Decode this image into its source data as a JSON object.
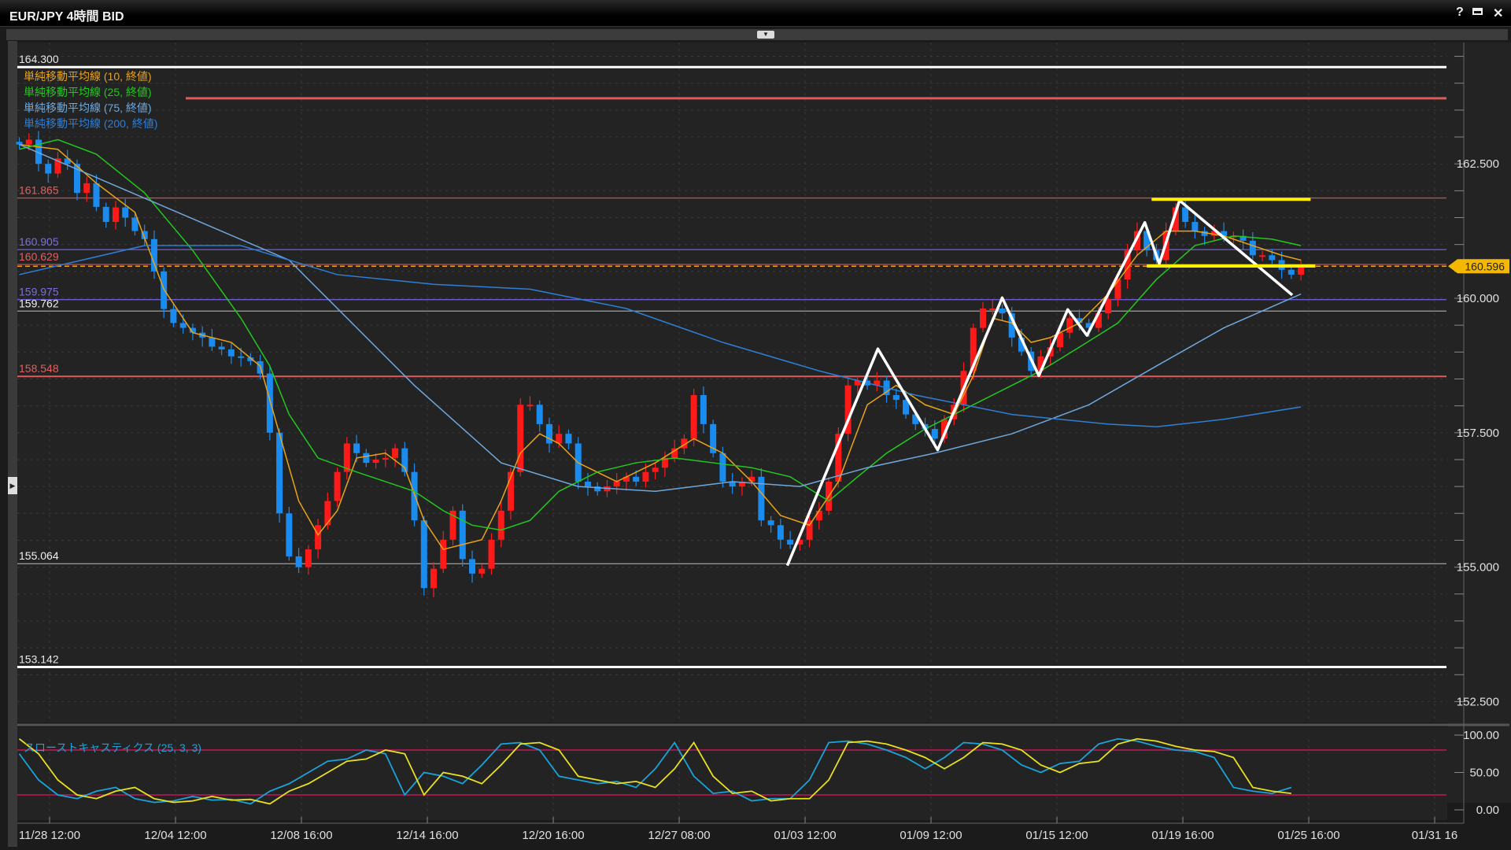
{
  "window": {
    "title": "EUR/JPY 4時間 BID",
    "icons": [
      "help-icon",
      "maximize-icon",
      "close-icon"
    ],
    "help_glyph": "?",
    "close_glyph": "✕"
  },
  "legend": [
    {
      "label": "単純移動平均線 (10, 終値)",
      "color": "#e8a317"
    },
    {
      "label": "単純移動平均線 (25, 終値)",
      "color": "#22c81e"
    },
    {
      "label": "単純移動平均線 (75, 終値)",
      "color": "#6fa8dc"
    },
    {
      "label": "単純移動平均線 (200, 終値)",
      "color": "#2e7fd6"
    }
  ],
  "stochastic": {
    "label": "スローストキャスティクス (25, 3, 3)",
    "axis": [
      "100.00",
      "50.00",
      "0.00"
    ],
    "bands": [
      80,
      20
    ]
  },
  "chart_data": {
    "type": "candlestick",
    "symbol": "EUR/JPY",
    "timeframe": "4時間",
    "colors": {
      "up": "#ff1a1a",
      "down": "#1a8cf0",
      "background": "#232323"
    },
    "ylim": [
      152.2,
      164.6
    ],
    "y_ticks": [
      "162.500",
      "160.000",
      "157.500",
      "155.000",
      "152.500"
    ],
    "y_tick_values": [
      162.5,
      160.0,
      157.5,
      155.0,
      152.5
    ],
    "x_labels": [
      "11/28 12:00",
      "12/04 12:00",
      "12/08 16:00",
      "12/14 16:00",
      "12/20 16:00",
      "12/27 08:00",
      "01/03 12:00",
      "01/09 12:00",
      "01/15 12:00",
      "01/19 16:00",
      "01/25 16:00",
      "01/31 16"
    ],
    "current_price": {
      "label": "160.596",
      "value": 160.596,
      "color": "#f5b800"
    },
    "close": [
      162.86,
      162.95,
      162.5,
      162.32,
      162.6,
      162.5,
      161.96,
      162.14,
      161.7,
      161.42,
      161.69,
      161.5,
      161.25,
      161.1,
      160.5,
      159.8,
      159.54,
      159.45,
      159.36,
      159.27,
      159.1,
      159.05,
      158.92,
      158.9,
      158.83,
      158.6,
      157.5,
      156.0,
      155.2,
      155.0,
      155.33,
      155.78,
      156.23,
      156.77,
      157.3,
      157.12,
      156.94,
      157.0,
      157.03,
      157.21,
      156.77,
      155.87,
      154.61,
      154.97,
      155.51,
      156.05,
      155.15,
      154.88,
      154.97,
      155.51,
      156.05,
      156.77,
      158.02,
      158.02,
      157.66,
      157.3,
      157.48,
      157.3,
      156.59,
      156.5,
      156.41,
      156.5,
      156.59,
      156.68,
      156.59,
      156.77,
      156.85,
      157.03,
      157.21,
      157.39,
      158.2,
      157.66,
      157.12,
      156.59,
      156.5,
      156.59,
      156.68,
      155.87,
      155.78,
      155.51,
      155.42,
      155.51,
      155.87,
      156.05,
      156.59,
      157.48,
      158.38,
      158.47,
      158.38,
      158.47,
      158.2,
      158.11,
      157.84,
      157.66,
      157.57,
      157.39,
      157.75,
      158.02,
      158.65,
      159.45,
      159.81,
      159.81,
      159.72,
      159.27,
      159.01,
      158.65,
      158.92,
      159.09,
      159.36,
      159.63,
      159.54,
      159.45,
      159.72,
      159.99,
      160.35,
      160.89,
      161.25,
      160.89,
      160.71,
      161.25,
      161.69,
      161.42,
      161.25,
      161.16,
      161.25,
      161.16,
      161.16,
      161.07,
      160.8,
      160.8,
      160.71,
      160.53,
      160.44,
      160.6
    ],
    "moving_averages": [
      {
        "name": "単純移動平均線 (10, 終値)",
        "color": "#e8a317",
        "points": [
          [
            0,
            162.86
          ],
          [
            4,
            162.77
          ],
          [
            8,
            162.14
          ],
          [
            12,
            161.6
          ],
          [
            15,
            160.17
          ],
          [
            18,
            159.36
          ],
          [
            22,
            159.18
          ],
          [
            25,
            158.74
          ],
          [
            27,
            157.48
          ],
          [
            29,
            156.23
          ],
          [
            31,
            155.6
          ],
          [
            33,
            156.05
          ],
          [
            35,
            157.03
          ],
          [
            38,
            157.12
          ],
          [
            40,
            156.85
          ],
          [
            42,
            155.87
          ],
          [
            44,
            155.33
          ],
          [
            46,
            155.42
          ],
          [
            48,
            155.51
          ],
          [
            50,
            156.23
          ],
          [
            52,
            157.12
          ],
          [
            54,
            157.48
          ],
          [
            56,
            157.3
          ],
          [
            58,
            156.94
          ],
          [
            62,
            156.59
          ],
          [
            66,
            156.94
          ],
          [
            70,
            157.39
          ],
          [
            73,
            157.12
          ],
          [
            76,
            156.59
          ],
          [
            79,
            155.96
          ],
          [
            82,
            155.78
          ],
          [
            85,
            156.59
          ],
          [
            88,
            158.02
          ],
          [
            91,
            158.38
          ],
          [
            94,
            158.02
          ],
          [
            97,
            157.84
          ],
          [
            99,
            158.56
          ],
          [
            101,
            159.63
          ],
          [
            103,
            159.54
          ],
          [
            105,
            159.18
          ],
          [
            107,
            159.27
          ],
          [
            110,
            159.54
          ],
          [
            113,
            160.08
          ],
          [
            116,
            160.8
          ],
          [
            119,
            161.25
          ],
          [
            122,
            161.25
          ],
          [
            125,
            161.16
          ],
          [
            128,
            160.98
          ],
          [
            131,
            160.8
          ],
          [
            133,
            160.71
          ]
        ]
      },
      {
        "name": "単純移動平均線 (25, 終値)",
        "color": "#22c81e",
        "points": [
          [
            0,
            162.77
          ],
          [
            4,
            162.95
          ],
          [
            8,
            162.68
          ],
          [
            13,
            161.96
          ],
          [
            18,
            160.89
          ],
          [
            23,
            159.63
          ],
          [
            26,
            158.74
          ],
          [
            28,
            157.84
          ],
          [
            31,
            157.03
          ],
          [
            35,
            156.77
          ],
          [
            38,
            156.59
          ],
          [
            41,
            156.41
          ],
          [
            44,
            156.05
          ],
          [
            47,
            155.78
          ],
          [
            50,
            155.69
          ],
          [
            53,
            155.87
          ],
          [
            56,
            156.41
          ],
          [
            60,
            156.77
          ],
          [
            64,
            156.94
          ],
          [
            68,
            157.03
          ],
          [
            72,
            156.94
          ],
          [
            76,
            156.85
          ],
          [
            80,
            156.68
          ],
          [
            84,
            156.23
          ],
          [
            87,
            156.68
          ],
          [
            90,
            157.12
          ],
          [
            94,
            157.57
          ],
          [
            98,
            157.93
          ],
          [
            102,
            158.29
          ],
          [
            106,
            158.65
          ],
          [
            110,
            159.09
          ],
          [
            114,
            159.54
          ],
          [
            118,
            160.35
          ],
          [
            122,
            160.98
          ],
          [
            126,
            161.16
          ],
          [
            130,
            161.1
          ],
          [
            133,
            160.98
          ]
        ]
      },
      {
        "name": "単純移動平均線 (75, 終値)",
        "color": "#6fa8dc",
        "points": [
          [
            0,
            162.86
          ],
          [
            28,
            160.71
          ],
          [
            41,
            158.38
          ],
          [
            50,
            156.94
          ],
          [
            58,
            156.5
          ],
          [
            66,
            156.41
          ],
          [
            74,
            156.59
          ],
          [
            81,
            156.5
          ],
          [
            88,
            156.85
          ],
          [
            95,
            157.12
          ],
          [
            103,
            157.48
          ],
          [
            111,
            158.02
          ],
          [
            118,
            158.74
          ],
          [
            125,
            159.45
          ],
          [
            133,
            160.08
          ]
        ]
      },
      {
        "name": "単純移動平均線 (200, 終値)",
        "color": "#2e7fd6",
        "points": [
          [
            0,
            160.44
          ],
          [
            13,
            160.98
          ],
          [
            23,
            160.98
          ],
          [
            33,
            160.44
          ],
          [
            43,
            160.26
          ],
          [
            53,
            160.17
          ],
          [
            63,
            159.81
          ],
          [
            73,
            159.18
          ],
          [
            83,
            158.65
          ],
          [
            93,
            158.2
          ],
          [
            103,
            157.84
          ],
          [
            113,
            157.66
          ],
          [
            118,
            157.61
          ],
          [
            125,
            157.75
          ],
          [
            133,
            157.98
          ]
        ]
      }
    ],
    "horizontal_lines": [
      {
        "value": 164.3,
        "label": "164.300",
        "color": "#ffffff",
        "label_color": "#e8e8e8",
        "weight": "thick"
      },
      {
        "value": 163.72,
        "label": "",
        "color": "#e05a5a",
        "label_color": "#e05a5a",
        "weight": "thick"
      },
      {
        "value": 161.865,
        "label": "161.865",
        "color": "#c0504d",
        "label_color": "#e06060",
        "weight": "thin"
      },
      {
        "value": 160.905,
        "label": "160.905",
        "color": "#6a5acd",
        "label_color": "#7b6fe0",
        "weight": "thin"
      },
      {
        "value": 160.629,
        "label": "160.629",
        "color": "#c0504d",
        "label_color": "#e06060",
        "weight": "thin"
      },
      {
        "value": 159.975,
        "label": "159.975",
        "color": "#6a5acd",
        "label_color": "#7b6fe0",
        "weight": "thin"
      },
      {
        "value": 159.762,
        "label": "159.762",
        "color": "#a0a0a0",
        "label_color": "#f0f0f0",
        "weight": "thin"
      },
      {
        "value": 158.548,
        "label": "158.548",
        "color": "#e05a5a",
        "label_color": "#e06060",
        "weight": "med"
      },
      {
        "value": 155.064,
        "label": "155.064",
        "color": "#a0a0a0",
        "label_color": "#f0f0f0",
        "weight": "thin"
      },
      {
        "value": 153.142,
        "label": "153.142",
        "color": "#ffffff",
        "label_color": "#e8e8e8",
        "weight": "thick"
      }
    ],
    "drawn_zigzag": {
      "color": "#ffffff",
      "points": [
        [
          79.7,
          155.03
        ],
        [
          89.1,
          159.06
        ],
        [
          95.3,
          157.18
        ],
        [
          102,
          160.01
        ],
        [
          105.8,
          158.56
        ],
        [
          108.8,
          159.79
        ],
        [
          110.8,
          159.31
        ],
        [
          116.8,
          161.41
        ],
        [
          118.3,
          160.64
        ],
        [
          120.4,
          161.82
        ],
        [
          132.1,
          160.06
        ]
      ]
    },
    "drawn_levels": {
      "color": "#ffee00",
      "lines": [
        [
          [
            117.5,
            161.84
          ],
          [
            134,
            161.84
          ]
        ],
        [
          [
            117,
            160.6
          ],
          [
            134.5,
            160.6
          ]
        ]
      ]
    },
    "stochastic_d": {
      "color": "#e8e020",
      "step": 2,
      "values": [
        95,
        75,
        40,
        20,
        15,
        25,
        30,
        15,
        10,
        12,
        18,
        13,
        14,
        8,
        25,
        35,
        50,
        65,
        68,
        80,
        75,
        20,
        50,
        45,
        35,
        60,
        88,
        90,
        80,
        45,
        40,
        35,
        38,
        30,
        55,
        90,
        45,
        22,
        25,
        12,
        15,
        15,
        40,
        90,
        92,
        88,
        80,
        70,
        55,
        70,
        90,
        88,
        80,
        60,
        50,
        62,
        65,
        88,
        95,
        92,
        85,
        80,
        78,
        70,
        30,
        25,
        22
      ]
    },
    "stochastic_k": {
      "color": "#1aa3d9",
      "step": 2,
      "values": [
        75,
        40,
        20,
        15,
        25,
        30,
        15,
        10,
        12,
        18,
        13,
        14,
        8,
        25,
        35,
        50,
        65,
        68,
        80,
        75,
        20,
        50,
        45,
        35,
        60,
        88,
        90,
        80,
        45,
        40,
        35,
        38,
        30,
        55,
        90,
        45,
        22,
        25,
        12,
        15,
        15,
        40,
        90,
        92,
        88,
        80,
        70,
        55,
        70,
        90,
        88,
        80,
        60,
        50,
        62,
        65,
        88,
        95,
        92,
        85,
        80,
        78,
        70,
        30,
        25,
        22,
        30
      ]
    }
  }
}
